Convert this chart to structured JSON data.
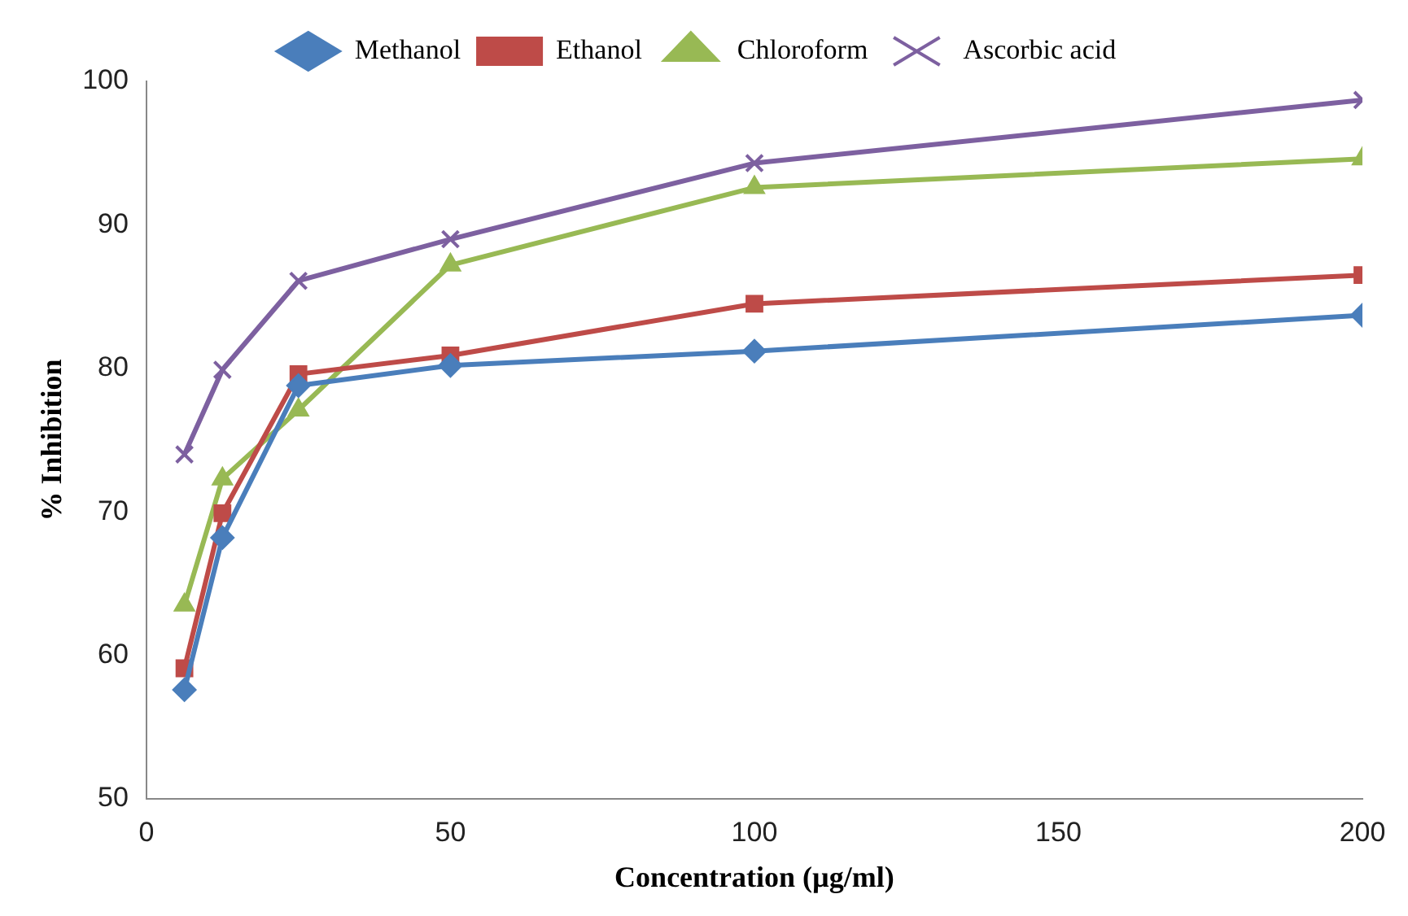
{
  "chart_data": {
    "type": "line",
    "xlabel": "Concentration (µg/ml)",
    "ylabel": "% Inhibition",
    "x": [
      6.25,
      12.5,
      25,
      50,
      100,
      200
    ],
    "series": [
      {
        "name": "Methanol",
        "color": "#4a7ebb",
        "marker": "diamond",
        "values": [
          57.6,
          68.2,
          78.8,
          80.2,
          81.2,
          83.7
        ]
      },
      {
        "name": "Ethanol",
        "color": "#be4b48",
        "marker": "square",
        "values": [
          59.1,
          69.9,
          79.6,
          80.9,
          84.5,
          86.5
        ]
      },
      {
        "name": "Chloroform",
        "color": "#98b954",
        "marker": "triangle",
        "values": [
          63.5,
          72.3,
          77.1,
          87.2,
          92.6,
          94.6
        ]
      },
      {
        "name": "Ascorbic acid",
        "color": "#7d60a0",
        "marker": "cross",
        "values": [
          74.0,
          79.9,
          86.1,
          89.0,
          94.3,
          98.7
        ]
      }
    ],
    "xlim": [
      0,
      200
    ],
    "xticks": [
      0,
      50,
      100,
      150,
      200
    ],
    "ylim": [
      50,
      100
    ],
    "yticks": [
      50,
      60,
      70,
      80,
      90,
      100
    ],
    "legend": "top",
    "line_style": "solid"
  }
}
